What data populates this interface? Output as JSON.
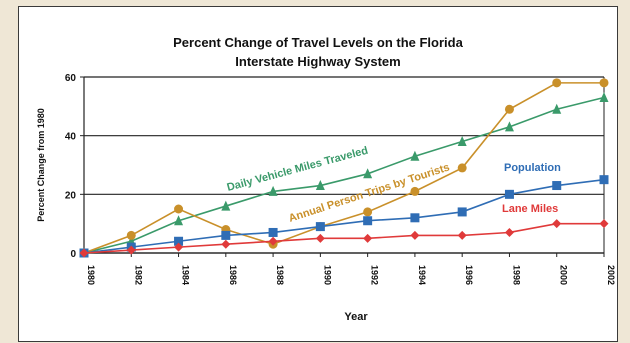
{
  "chart_data": {
    "type": "line",
    "title": "Percent Change of Travel Levels on the Florida",
    "subtitle": "Interstate Highway System",
    "xlabel": "Year",
    "ylabel": "Percent Change from 1980",
    "categories": [
      "1980",
      "1982",
      "1984",
      "1986",
      "1988",
      "1990",
      "1992",
      "1994",
      "1996",
      "1998",
      "2000",
      "2002"
    ],
    "ylim": [
      0,
      60
    ],
    "yticks": [
      "0",
      "20",
      "40",
      "60"
    ],
    "grid": true,
    "series": [
      {
        "name": "Daily Vehicle Miles Traveled",
        "color": "#3a9a6a",
        "marker": "triangle",
        "values": [
          0,
          4,
          11,
          16,
          21,
          23,
          27,
          33,
          38,
          43,
          49,
          53
        ]
      },
      {
        "name": "Annual Person Trips by Tourists",
        "color": "#c9902a",
        "marker": "circle",
        "values": [
          0,
          6,
          15,
          8,
          3,
          9,
          14,
          21,
          29,
          49,
          58,
          58
        ]
      },
      {
        "name": "Population",
        "color": "#2f6db5",
        "marker": "square",
        "values": [
          0,
          2,
          4,
          6,
          7,
          9,
          11,
          12,
          14,
          20,
          23,
          25
        ]
      },
      {
        "name": "Lane Miles",
        "color": "#e03a3a",
        "marker": "diamond",
        "values": [
          0,
          1,
          2,
          3,
          4,
          5,
          5,
          6,
          6,
          7,
          10,
          10
        ]
      }
    ]
  }
}
